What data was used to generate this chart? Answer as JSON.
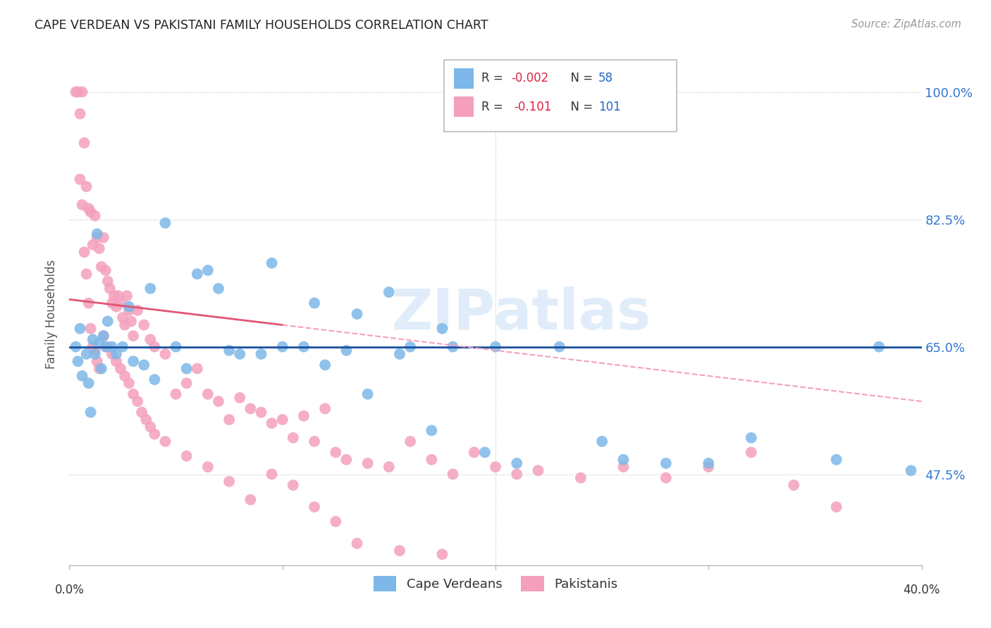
{
  "title": "CAPE VERDEAN VS PAKISTANI FAMILY HOUSEHOLDS CORRELATION CHART",
  "source": "Source: ZipAtlas.com",
  "ylabel": "Family Households",
  "yticks": [
    47.5,
    65.0,
    82.5,
    100.0
  ],
  "watermark": "ZIPatlas",
  "blue_line_y": 65.0,
  "pink_line_x0": 0.0,
  "pink_line_y0": 71.5,
  "pink_line_x1": 40.0,
  "pink_line_y1": 57.5,
  "xmin": 0.0,
  "xmax": 40.0,
  "ymin": 35.0,
  "ymax": 104.0,
  "blue_color": "#7db8e8",
  "pink_color": "#f4a0bc",
  "blue_line_color": "#1a4fa0",
  "pink_line_color_solid": "#e05575",
  "pink_line_color_dash": "#f4a0bc",
  "cv_N": 58,
  "pk_N": 101,
  "cv_R": "-0.002",
  "pk_R": "-0.101",
  "legend_R_color": "#dd2244",
  "legend_N_color": "#2266cc",
  "cv_x": [
    0.3,
    0.4,
    0.5,
    0.6,
    0.8,
    0.9,
    1.0,
    1.1,
    1.2,
    1.4,
    1.5,
    1.6,
    1.7,
    2.0,
    2.2,
    2.5,
    3.0,
    3.5,
    4.0,
    5.0,
    5.5,
    6.5,
    7.0,
    8.0,
    9.0,
    10.0,
    11.0,
    12.0,
    13.0,
    14.0,
    15.5,
    16.0,
    17.0,
    18.0,
    19.5,
    21.0,
    23.0,
    25.0,
    26.0,
    28.0,
    30.0,
    32.0,
    36.0,
    38.0,
    39.5,
    1.3,
    1.8,
    2.8,
    3.8,
    4.5,
    6.0,
    7.5,
    9.5,
    11.5,
    13.5,
    15.0,
    17.5,
    20.0
  ],
  "cv_y": [
    65.0,
    63.0,
    67.5,
    61.0,
    64.0,
    60.0,
    56.0,
    66.0,
    64.0,
    65.5,
    62.0,
    66.5,
    65.0,
    65.0,
    64.0,
    65.0,
    63.0,
    62.5,
    60.5,
    65.0,
    62.0,
    75.5,
    73.0,
    64.0,
    64.0,
    65.0,
    65.0,
    62.5,
    64.5,
    58.5,
    64.0,
    65.0,
    53.5,
    65.0,
    50.5,
    49.0,
    65.0,
    52.0,
    49.5,
    49.0,
    49.0,
    52.5,
    49.5,
    65.0,
    48.0,
    80.5,
    68.5,
    70.5,
    73.0,
    82.0,
    75.0,
    64.5,
    76.5,
    71.0,
    69.5,
    72.5,
    67.5,
    65.0
  ],
  "pk_x": [
    0.3,
    0.4,
    0.5,
    0.6,
    0.7,
    0.8,
    0.9,
    1.0,
    1.1,
    1.2,
    1.3,
    1.4,
    1.5,
    1.6,
    1.7,
    1.8,
    1.9,
    2.0,
    2.1,
    2.2,
    2.3,
    2.4,
    2.5,
    2.6,
    2.7,
    2.8,
    2.9,
    3.0,
    3.2,
    3.5,
    3.8,
    4.0,
    4.5,
    5.0,
    5.5,
    6.0,
    6.5,
    7.0,
    7.5,
    8.0,
    8.5,
    9.0,
    9.5,
    10.0,
    10.5,
    11.0,
    11.5,
    12.0,
    12.5,
    13.0,
    14.0,
    15.0,
    16.0,
    17.0,
    18.0,
    19.0,
    20.0,
    21.0,
    22.0,
    24.0,
    26.0,
    28.0,
    30.0,
    32.0,
    34.0,
    36.0,
    0.5,
    0.6,
    0.7,
    0.8,
    0.9,
    1.0,
    1.1,
    1.2,
    1.3,
    1.4,
    1.6,
    1.8,
    2.0,
    2.2,
    2.4,
    2.6,
    2.8,
    3.0,
    3.2,
    3.4,
    3.6,
    3.8,
    4.0,
    4.5,
    5.5,
    6.5,
    7.5,
    8.5,
    9.5,
    10.5,
    11.5,
    12.5,
    13.5,
    15.5,
    17.5
  ],
  "pk_y": [
    100.0,
    100.0,
    97.0,
    100.0,
    93.0,
    87.0,
    84.0,
    83.5,
    79.0,
    83.0,
    80.0,
    78.5,
    76.0,
    80.0,
    75.5,
    74.0,
    73.0,
    71.0,
    72.0,
    70.5,
    72.0,
    71.0,
    69.0,
    68.0,
    72.0,
    70.0,
    68.5,
    66.5,
    70.0,
    68.0,
    66.0,
    65.0,
    64.0,
    58.5,
    60.0,
    62.0,
    58.5,
    57.5,
    55.0,
    58.0,
    56.5,
    56.0,
    54.5,
    55.0,
    52.5,
    55.5,
    52.0,
    56.5,
    50.5,
    49.5,
    49.0,
    48.5,
    52.0,
    49.5,
    47.5,
    50.5,
    48.5,
    47.5,
    48.0,
    47.0,
    48.5,
    47.0,
    48.5,
    50.5,
    46.0,
    43.0,
    88.0,
    84.5,
    78.0,
    75.0,
    71.0,
    67.5,
    65.0,
    64.5,
    63.0,
    62.0,
    66.5,
    65.0,
    64.0,
    63.0,
    62.0,
    61.0,
    60.0,
    58.5,
    57.5,
    56.0,
    55.0,
    54.0,
    53.0,
    52.0,
    50.0,
    48.5,
    46.5,
    44.0,
    47.5,
    46.0,
    43.0,
    41.0,
    38.0,
    37.0,
    36.5
  ]
}
